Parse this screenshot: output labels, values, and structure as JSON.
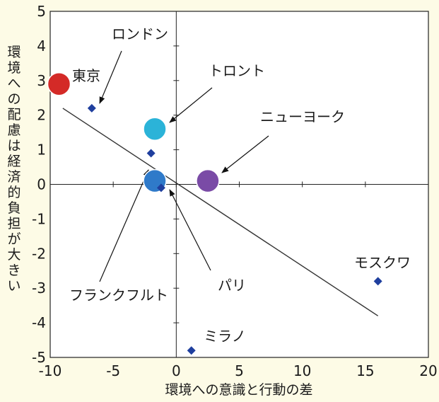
{
  "chart_data": {
    "type": "scatter",
    "title": "",
    "xlabel": "環境への意識と行動の差",
    "ylabel": "環境への配慮は経済的負担が大きい",
    "xlim": [
      -10,
      20
    ],
    "ylim": [
      -5,
      5
    ],
    "xticks": [
      -10,
      -5,
      0,
      5,
      10,
      15,
      20
    ],
    "yticks": [
      -5,
      -4,
      -3,
      -2,
      -1,
      0,
      1,
      2,
      3,
      4,
      5
    ],
    "grid": false,
    "zero_axes": true,
    "trend_line": {
      "from": [
        -9,
        2.2
      ],
      "to": [
        16,
        -3.8
      ]
    },
    "points": [
      {
        "label": "東京",
        "x": -9.3,
        "y": 2.9,
        "marker": "circle",
        "color": "#d42a27"
      },
      {
        "label": "ロンドン",
        "x": -6.7,
        "y": 2.2,
        "marker": "diamond",
        "color": "#1f3f9e"
      },
      {
        "label": "トロント",
        "x": -1.7,
        "y": 1.6,
        "marker": "circle",
        "color": "#2bb3d8"
      },
      {
        "label": "ニューヨーク",
        "x": 2.5,
        "y": 0.1,
        "marker": "circle",
        "color": "#7a4ba6"
      },
      {
        "label": "フランクフルト",
        "x": -1.7,
        "y": 0.1,
        "marker": "circle",
        "color": "#2f7ac9"
      },
      {
        "label": "",
        "x": -2.0,
        "y": 0.9,
        "marker": "diamond",
        "color": "#1f3f9e"
      },
      {
        "label": "パリ",
        "x": -1.2,
        "y": -0.1,
        "marker": "diamond",
        "color": "#1f3f9e"
      },
      {
        "label": "モスクワ",
        "x": 16.0,
        "y": -2.8,
        "marker": "diamond",
        "color": "#1f3f9e"
      },
      {
        "label": "ミラノ",
        "x": 1.2,
        "y": -4.8,
        "marker": "diamond",
        "color": "#1f3f9e"
      }
    ]
  }
}
